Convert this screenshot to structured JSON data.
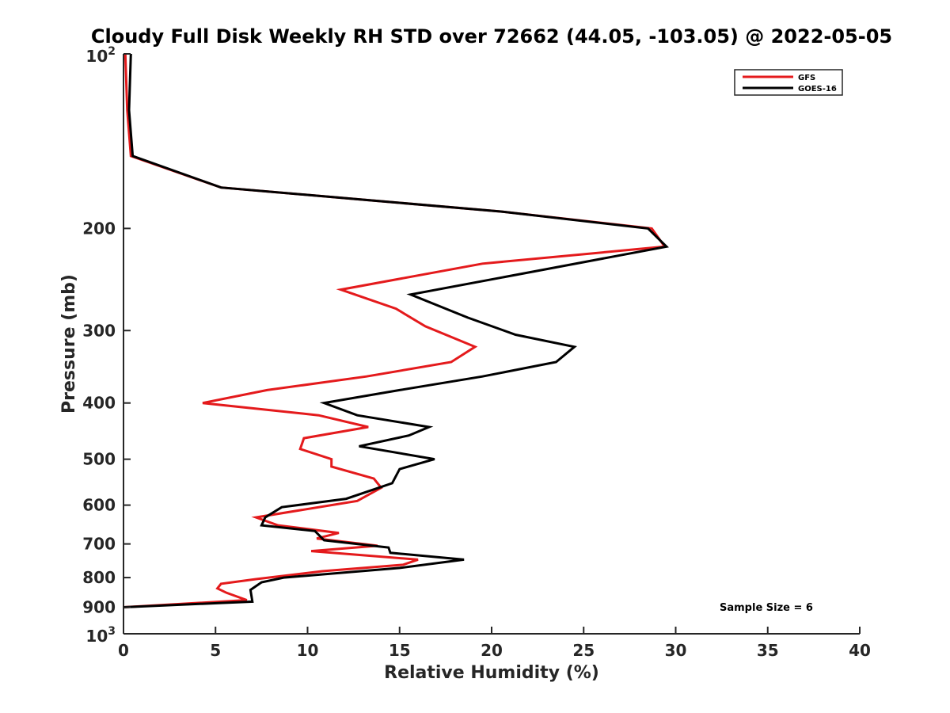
{
  "chart_data": {
    "type": "line",
    "title": "Cloudy Full Disk Weekly RH STD over 72662 (44.05, -103.05) @ 2022-05-05",
    "xlabel": "Relative Humidity (%)",
    "ylabel": "Pressure (mb)",
    "xlim": [
      0,
      40
    ],
    "ylim": [
      100,
      1000
    ],
    "y_scale": "log",
    "y_reversed": true,
    "x_ticks": [
      0,
      5,
      10,
      15,
      20,
      25,
      30,
      35,
      40
    ],
    "y_ticks": [
      {
        "value": 100,
        "base": "10",
        "exp": "2"
      },
      {
        "value": 200,
        "label": "200"
      },
      {
        "value": 300,
        "label": "300"
      },
      {
        "value": 400,
        "label": "400"
      },
      {
        "value": 500,
        "label": "500"
      },
      {
        "value": 600,
        "label": "600"
      },
      {
        "value": 700,
        "label": "700"
      },
      {
        "value": 800,
        "label": "800"
      },
      {
        "value": 900,
        "label": "900"
      },
      {
        "value": 1000,
        "base": "10",
        "exp": "3"
      }
    ],
    "grid": false,
    "legend_position": "top-right",
    "annotation": "Sample Size = 6",
    "series": [
      {
        "name": "GFS",
        "color": "#e41a1c",
        "points": [
          [
            0.1,
            100
          ],
          [
            0.2,
            125
          ],
          [
            0.4,
            150
          ],
          [
            5.3,
            170
          ],
          [
            20.5,
            187
          ],
          [
            28.7,
            200
          ],
          [
            29.4,
            215
          ],
          [
            19.5,
            230
          ],
          [
            11.8,
            255
          ],
          [
            14.8,
            275
          ],
          [
            16.4,
            295
          ],
          [
            19.1,
            320
          ],
          [
            17.8,
            340
          ],
          [
            13.2,
            360
          ],
          [
            7.8,
            380
          ],
          [
            4.3,
            400
          ],
          [
            10.6,
            420
          ],
          [
            13.3,
            440
          ],
          [
            9.8,
            460
          ],
          [
            9.6,
            480
          ],
          [
            11.3,
            500
          ],
          [
            11.3,
            515
          ],
          [
            13.6,
            540
          ],
          [
            14.0,
            560
          ],
          [
            12.7,
            590
          ],
          [
            7.2,
            630
          ],
          [
            8.4,
            650
          ],
          [
            11.7,
            670
          ],
          [
            10.5,
            685
          ],
          [
            13.8,
            705
          ],
          [
            10.2,
            720
          ],
          [
            16.0,
            745
          ],
          [
            15.2,
            760
          ],
          [
            10.8,
            780
          ],
          [
            7.2,
            805
          ],
          [
            5.3,
            820
          ],
          [
            5.1,
            835
          ],
          [
            5.6,
            850
          ],
          [
            6.7,
            875
          ],
          [
            0.0,
            900
          ]
        ]
      },
      {
        "name": "GOES-16",
        "color": "#000000",
        "points": [
          [
            0.4,
            100
          ],
          [
            0.3,
            125
          ],
          [
            0.5,
            150
          ],
          [
            5.3,
            170
          ],
          [
            20.5,
            187
          ],
          [
            28.5,
            200
          ],
          [
            29.5,
            215
          ],
          [
            23.0,
            235
          ],
          [
            15.6,
            260
          ],
          [
            18.7,
            285
          ],
          [
            21.3,
            305
          ],
          [
            24.5,
            320
          ],
          [
            23.5,
            340
          ],
          [
            19.5,
            360
          ],
          [
            15.0,
            380
          ],
          [
            10.9,
            400
          ],
          [
            12.7,
            420
          ],
          [
            16.6,
            440
          ],
          [
            15.5,
            455
          ],
          [
            12.8,
            475
          ],
          [
            16.9,
            500
          ],
          [
            15.0,
            520
          ],
          [
            14.6,
            550
          ],
          [
            12.1,
            585
          ],
          [
            8.6,
            605
          ],
          [
            7.7,
            630
          ],
          [
            7.5,
            650
          ],
          [
            10.4,
            665
          ],
          [
            10.9,
            690
          ],
          [
            14.4,
            710
          ],
          [
            14.5,
            725
          ],
          [
            18.5,
            745
          ],
          [
            15.0,
            770
          ],
          [
            8.7,
            800
          ],
          [
            7.5,
            815
          ],
          [
            6.9,
            840
          ],
          [
            7.0,
            880
          ],
          [
            0.0,
            900
          ]
        ]
      }
    ]
  }
}
